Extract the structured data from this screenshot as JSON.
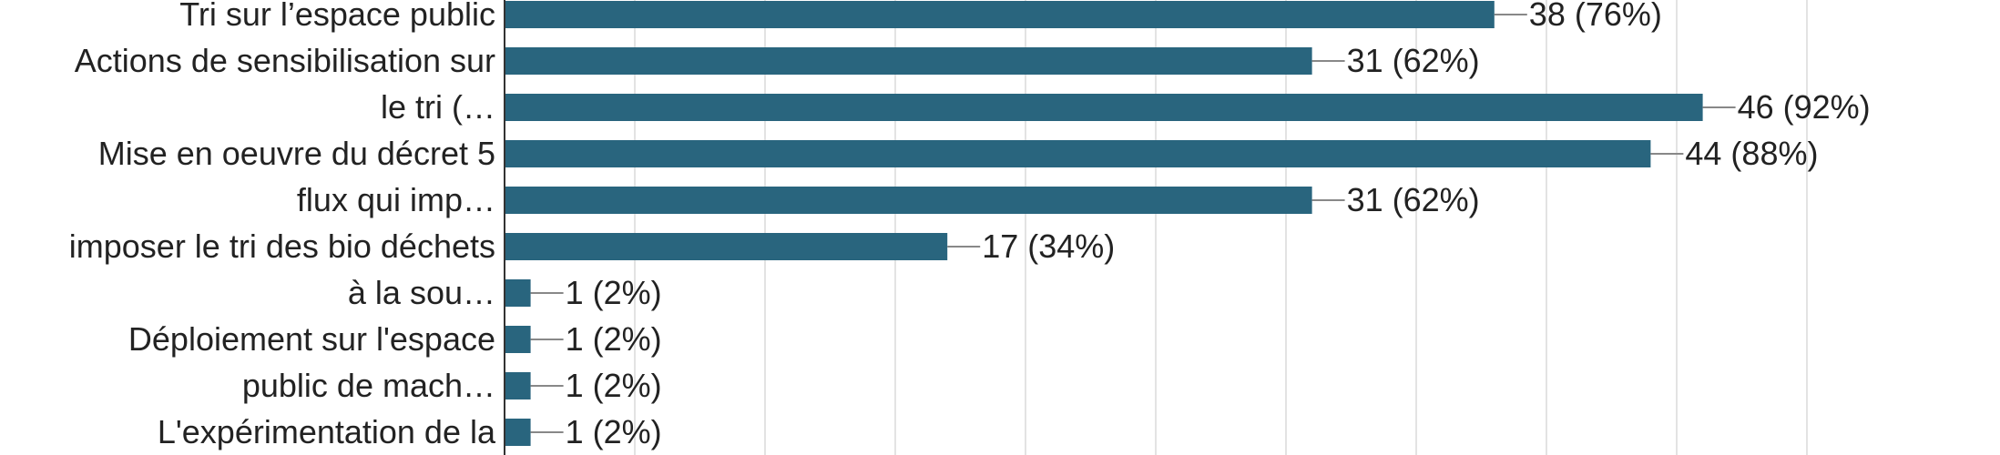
{
  "chart_data": {
    "type": "bar",
    "orientation": "horizontal",
    "bar_color": "#29657e",
    "grid": true,
    "xlim": [
      0,
      50
    ],
    "category_labels": [
      "Tri sur l’espace public",
      "Actions de sensibilisation sur",
      "le tri (…",
      "Mise en oeuvre du décret 5",
      "flux qui imp…",
      "imposer le tri des bio déchets",
      "à la sou…",
      "Déploiement sur l'espace",
      "public de mach…",
      "L'expérimentation de la"
    ],
    "values": [
      38,
      31,
      46,
      44,
      31,
      17,
      1,
      1,
      1,
      1
    ],
    "value_labels": [
      "38 (76%)",
      "31 (62%)",
      "46 (92%)",
      "44 (88%)",
      "31 (62%)",
      "17 (34%)",
      "1 (2%)",
      "1 (2%)",
      "1 (2%)",
      "1 (2%)"
    ]
  }
}
